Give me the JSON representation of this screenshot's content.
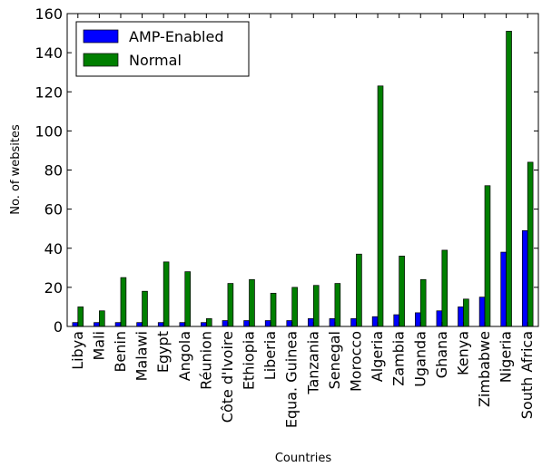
{
  "chart_data": {
    "type": "bar",
    "xlabel": "Countries",
    "ylabel": "No. of websites",
    "ylim": [
      0,
      160
    ],
    "yticks": [
      0,
      20,
      40,
      60,
      80,
      100,
      120,
      140,
      160
    ],
    "grid": false,
    "legend_position": "top-left",
    "categories": [
      "Libya",
      "Mali",
      "Benin",
      "Malawi",
      "Egypt",
      "Angola",
      "Réunion",
      "Côte d'Ivoire",
      "Ethiopia",
      "Liberia",
      "Equa. Guinea",
      "Tanzania",
      "Senegal",
      "Morocco",
      "Algeria",
      "Zambia",
      "Uganda",
      "Ghana",
      "Kenya",
      "Zimbabwe",
      "Nigeria",
      "South Africa"
    ],
    "series": [
      {
        "name": "AMP-Enabled",
        "color": "#0000ff",
        "values": [
          2,
          2,
          2,
          2,
          2,
          2,
          2,
          3,
          3,
          3,
          3,
          4,
          4,
          4,
          5,
          6,
          7,
          8,
          10,
          15,
          38,
          49
        ]
      },
      {
        "name": "Normal",
        "color": "#007f00",
        "values": [
          10,
          8,
          25,
          18,
          33,
          28,
          4,
          22,
          24,
          17,
          20,
          21,
          22,
          37,
          123,
          36,
          24,
          39,
          14,
          72,
          151,
          84
        ]
      }
    ]
  }
}
